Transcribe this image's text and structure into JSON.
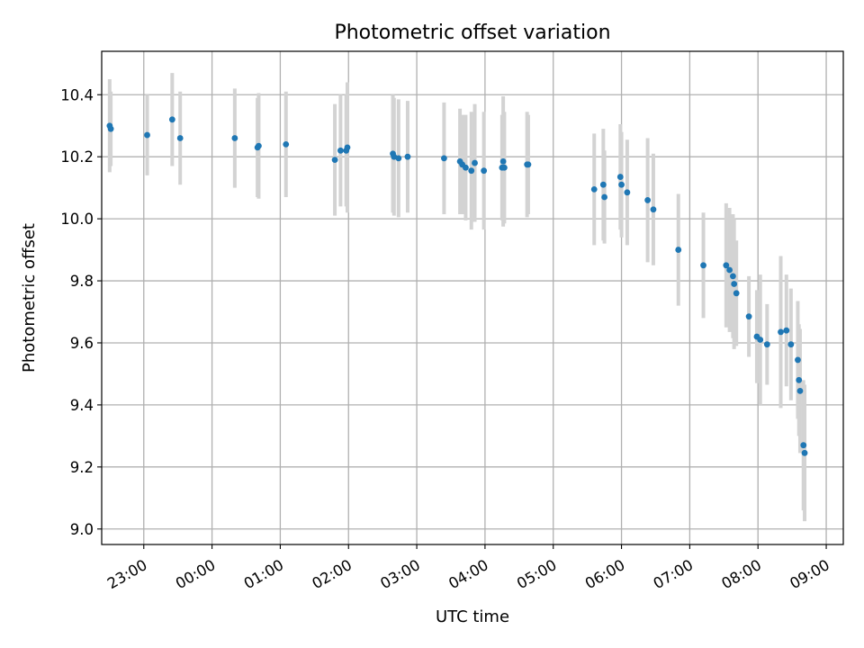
{
  "chart_data": {
    "type": "scatter",
    "title": "Photometric offset variation",
    "xlabel": "UTC time",
    "ylabel": "Photometric offset",
    "xlim": [
      "22:23",
      "09:15"
    ],
    "ylim": [
      8.95,
      10.54
    ],
    "xticks": [
      "23:00",
      "00:00",
      "01:00",
      "02:00",
      "03:00",
      "04:00",
      "05:00",
      "06:00",
      "07:00",
      "08:00",
      "09:00"
    ],
    "yticks": [
      "9.0",
      "9.2",
      "9.4",
      "9.6",
      "9.8",
      "10.0",
      "10.2",
      "10.4"
    ],
    "grid": true,
    "colors": {
      "points": "#1f77b4",
      "errorbars": "#d3d3d3",
      "grid": "#b0b0b0"
    },
    "series": [
      {
        "x": [
          "22:30",
          "22:31",
          "23:03",
          "23:25",
          "23:32",
          "00:20",
          "00:40",
          "00:41",
          "01:05",
          "01:48",
          "01:53",
          "01:58",
          "01:59",
          "02:39",
          "02:40",
          "02:44",
          "02:52",
          "03:24",
          "03:38",
          "03:40",
          "03:43",
          "03:48",
          "03:51",
          "03:59",
          "04:15",
          "04:16",
          "04:17",
          "04:37",
          "04:38",
          "05:36",
          "05:44",
          "05:45",
          "05:59",
          "06:00",
          "06:05",
          "06:23",
          "06:28",
          "06:50",
          "07:12",
          "07:32",
          "07:35",
          "07:38",
          "07:39",
          "07:41",
          "07:52",
          "07:59",
          "08:02",
          "08:08",
          "08:20",
          "08:25",
          "08:29",
          "08:35",
          "08:36",
          "08:37",
          "08:40",
          "08:41"
        ],
        "y": [
          10.3,
          10.29,
          10.27,
          10.32,
          10.26,
          10.26,
          10.23,
          10.235,
          10.24,
          10.19,
          10.22,
          10.22,
          10.23,
          10.21,
          10.2,
          10.195,
          10.2,
          10.195,
          10.185,
          10.175,
          10.165,
          10.155,
          10.18,
          10.155,
          10.165,
          10.185,
          10.165,
          10.175,
          10.175,
          10.095,
          10.11,
          10.07,
          10.135,
          10.11,
          10.085,
          10.06,
          10.03,
          9.9,
          9.85,
          9.85,
          9.835,
          9.815,
          9.79,
          9.76,
          9.685,
          9.62,
          9.61,
          9.595,
          9.635,
          9.64,
          9.595,
          9.545,
          9.48,
          9.445,
          9.27,
          9.245
        ],
        "yerr": [
          0.15,
          0.12,
          0.13,
          0.15,
          0.15,
          0.16,
          0.16,
          0.17,
          0.17,
          0.18,
          0.18,
          0.18,
          0.21,
          0.19,
          0.19,
          0.19,
          0.18,
          0.18,
          0.17,
          0.16,
          0.17,
          0.19,
          0.19,
          0.19,
          0.17,
          0.21,
          0.18,
          0.17,
          0.16,
          0.18,
          0.18,
          0.15,
          0.17,
          0.17,
          0.17,
          0.2,
          0.18,
          0.18,
          0.17,
          0.2,
          0.2,
          0.2,
          0.21,
          0.17,
          0.13,
          0.15,
          0.21,
          0.13,
          0.245,
          0.18,
          0.18,
          0.19,
          0.18,
          0.2,
          0.21,
          0.22
        ]
      }
    ]
  }
}
